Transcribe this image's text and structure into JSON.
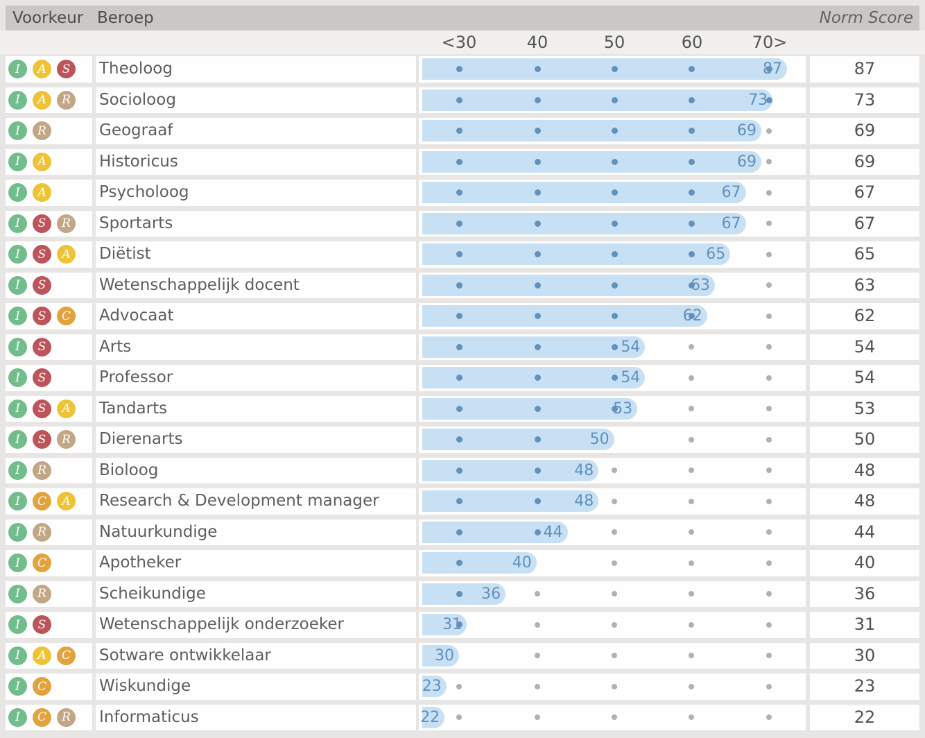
{
  "header": {
    "voorkeur": "Voorkeur",
    "beroep": "Beroep",
    "norm_score": "Norm Score"
  },
  "axis": {
    "tick_labels": [
      "<30",
      "40",
      "50",
      "60",
      "70>"
    ],
    "tick_values": [
      30,
      40,
      50,
      60,
      70
    ]
  },
  "badge_colors": {
    "I": "#71bd8c",
    "A": "#eec436",
    "S": "#bd545a",
    "R": "#c2a685",
    "C": "#e2a33d"
  },
  "colors": {
    "bar_fill": "#c8e0f3",
    "dot_active": "#6191be",
    "dot_inactive": "#b2b1b0",
    "bar_value_text": "#6090bd",
    "header_bg": "#c9c8c6",
    "page_bg": "#e7e6e4"
  },
  "rows": [
    {
      "badges": [
        "I",
        "A",
        "S"
      ],
      "name": "Theoloog",
      "score": 87
    },
    {
      "badges": [
        "I",
        "A",
        "R"
      ],
      "name": "Socioloog",
      "score": 73
    },
    {
      "badges": [
        "I",
        "R"
      ],
      "name": "Geograaf",
      "score": 69
    },
    {
      "badges": [
        "I",
        "A"
      ],
      "name": "Historicus",
      "score": 69
    },
    {
      "badges": [
        "I",
        "A"
      ],
      "name": "Psycholoog",
      "score": 67
    },
    {
      "badges": [
        "I",
        "S",
        "R"
      ],
      "name": "Sportarts",
      "score": 67
    },
    {
      "badges": [
        "I",
        "S",
        "A"
      ],
      "name": "Diëtist",
      "score": 65
    },
    {
      "badges": [
        "I",
        "S"
      ],
      "name": "Wetenschappelijk docent",
      "score": 63
    },
    {
      "badges": [
        "I",
        "S",
        "C"
      ],
      "name": "Advocaat",
      "score": 62
    },
    {
      "badges": [
        "I",
        "S"
      ],
      "name": "Arts",
      "score": 54
    },
    {
      "badges": [
        "I",
        "S"
      ],
      "name": "Professor",
      "score": 54
    },
    {
      "badges": [
        "I",
        "S",
        "A"
      ],
      "name": "Tandarts",
      "score": 53
    },
    {
      "badges": [
        "I",
        "S",
        "R"
      ],
      "name": "Dierenarts",
      "score": 50
    },
    {
      "badges": [
        "I",
        "R"
      ],
      "name": "Bioloog",
      "score": 48
    },
    {
      "badges": [
        "I",
        "C",
        "A"
      ],
      "name": "Research & Development manager",
      "score": 48
    },
    {
      "badges": [
        "I",
        "R"
      ],
      "name": "Natuurkundige",
      "score": 44
    },
    {
      "badges": [
        "I",
        "C"
      ],
      "name": "Apotheker",
      "score": 40
    },
    {
      "badges": [
        "I",
        "R"
      ],
      "name": "Scheikundige",
      "score": 36
    },
    {
      "badges": [
        "I",
        "S"
      ],
      "name": "Wetenschappelijk onderzoeker",
      "score": 31
    },
    {
      "badges": [
        "I",
        "A",
        "C"
      ],
      "name": "Sotware ontwikkelaar",
      "score": 30
    },
    {
      "badges": [
        "I",
        "C"
      ],
      "name": "Wiskundige",
      "score": 23
    },
    {
      "badges": [
        "I",
        "C",
        "R"
      ],
      "name": "Informaticus",
      "score": 22
    }
  ],
  "chart_data": {
    "type": "bar",
    "orientation": "horizontal",
    "title": "Norm Score",
    "xlabel": "Norm Score",
    "ylabel": "Beroep",
    "xlim": [
      30,
      70
    ],
    "x_tick_labels": [
      "<30",
      "40",
      "50",
      "60",
      "70>"
    ],
    "clamped_axis": true,
    "grid": "dotted-markers-at-ticks",
    "legend": "none",
    "categories": [
      "Theoloog",
      "Socioloog",
      "Geograaf",
      "Historicus",
      "Psycholoog",
      "Sportarts",
      "Diëtist",
      "Wetenschappelijk docent",
      "Advocaat",
      "Arts",
      "Professor",
      "Tandarts",
      "Dierenarts",
      "Bioloog",
      "Research & Development manager",
      "Natuurkundige",
      "Apotheker",
      "Scheikundige",
      "Wetenschappelijk onderzoeker",
      "Sotware ontwikkelaar",
      "Wiskundige",
      "Informaticus"
    ],
    "values": [
      87,
      73,
      69,
      69,
      67,
      67,
      65,
      63,
      62,
      54,
      54,
      53,
      50,
      48,
      48,
      44,
      40,
      36,
      31,
      30,
      23,
      22
    ]
  }
}
